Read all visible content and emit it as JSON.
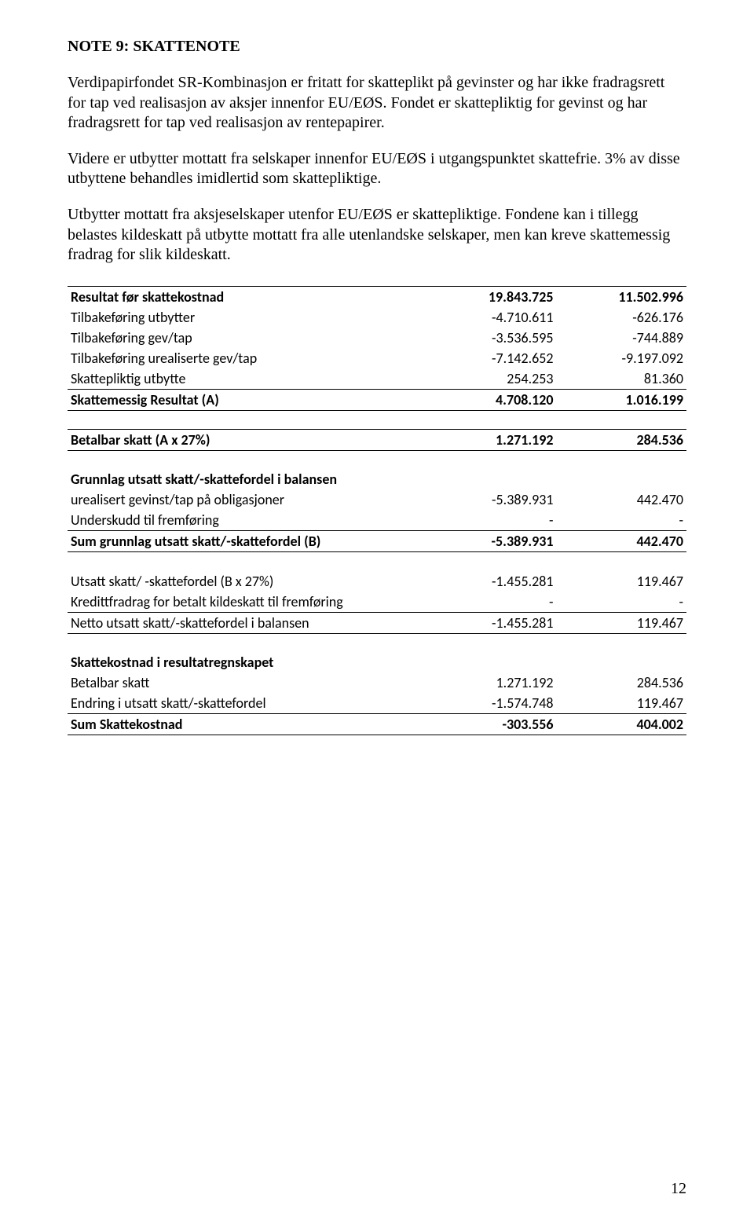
{
  "title": "NOTE  9: SKATTENOTE",
  "paragraphs": [
    "Verdipapirfondet SR-Kombinasjon er fritatt for skatteplikt på gevinster og har ikke fradragsrett for tap ved realisasjon av aksjer innenfor EU/EØS. Fondet er skattepliktig for gevinst og har fradragsrett for tap ved realisasjon av rentepapirer.",
    "Videre er utbytter mottatt fra selskaper innenfor EU/EØS i utgangspunktet skattefrie. 3% av disse utbyttene behandles imidlertid som skattepliktige.",
    "Utbytter mottatt fra aksjeselskaper utenfor EU/EØS er skattepliktige. Fondene kan i tillegg belastes kildeskatt på utbytte mottatt fra alle utenlandske selskaper, men kan kreve skattemessig fradrag for slik kildeskatt."
  ],
  "table": {
    "rows": [
      {
        "type": "bold bt",
        "label": "Resultat før skattekostnad",
        "v1": "19.843.725",
        "v2": "11.502.996"
      },
      {
        "type": "",
        "label": "Tilbakeføring utbytter",
        "v1": "-4.710.611",
        "v2": "-626.176"
      },
      {
        "type": "",
        "label": "Tilbakeføring gev/tap",
        "v1": "-3.536.595",
        "v2": "-744.889"
      },
      {
        "type": "",
        "label": "Tilbakeføring urealiserte gev/tap",
        "v1": "-7.142.652",
        "v2": "-9.197.092"
      },
      {
        "type": "bb",
        "label": "Skattepliktig utbytte",
        "v1": "254.253",
        "v2": "81.360"
      },
      {
        "type": "bold bb",
        "label": "Skattemessig Resultat (A)",
        "v1": "4.708.120",
        "v2": "1.016.199"
      },
      {
        "type": "spacer",
        "label": "",
        "v1": "",
        "v2": ""
      },
      {
        "type": "bold bt bb",
        "label": "Betalbar skatt (A x 27%)",
        "v1": "1.271.192",
        "v2": "284.536"
      },
      {
        "type": "spacer",
        "label": "",
        "v1": "",
        "v2": ""
      },
      {
        "type": "section",
        "label": "Grunnlag utsatt skatt/-skattefordel i balansen",
        "v1": "",
        "v2": ""
      },
      {
        "type": "",
        "label": "urealisert gevinst/tap på obligasjoner",
        "v1": "-5.389.931",
        "v2": "442.470"
      },
      {
        "type": "bb",
        "label": "Underskudd til fremføring",
        "v1": "-",
        "v2": "-"
      },
      {
        "type": "bold bb",
        "label": "Sum grunnlag utsatt skatt/-skattefordel (B)",
        "v1": "-5.389.931",
        "v2": "442.470"
      },
      {
        "type": "spacer",
        "label": "",
        "v1": "",
        "v2": ""
      },
      {
        "type": "",
        "label": "Utsatt skatt/ -skattefordel (B x 27%)",
        "v1": "-1.455.281",
        "v2": "119.467"
      },
      {
        "type": "bb",
        "label": "Kredittfradrag for betalt kildeskatt til fremføring",
        "v1": "-",
        "v2": "-"
      },
      {
        "type": "bb",
        "label": "Netto utsatt skatt/-skattefordel i balansen",
        "v1": "-1.455.281",
        "v2": "119.467"
      },
      {
        "type": "spacer",
        "label": "",
        "v1": "",
        "v2": ""
      },
      {
        "type": "section",
        "label": "Skattekostnad i resultatregnskapet",
        "v1": "",
        "v2": ""
      },
      {
        "type": "",
        "label": "Betalbar skatt",
        "v1": "1.271.192",
        "v2": "284.536"
      },
      {
        "type": "bb",
        "label": "Endring i utsatt skatt/-skattefordel",
        "v1": "-1.574.748",
        "v2": "119.467"
      },
      {
        "type": "bold bb",
        "label": "Sum Skattekostnad",
        "v1": "-303.556",
        "v2": "404.002"
      }
    ]
  },
  "page_number": "12"
}
